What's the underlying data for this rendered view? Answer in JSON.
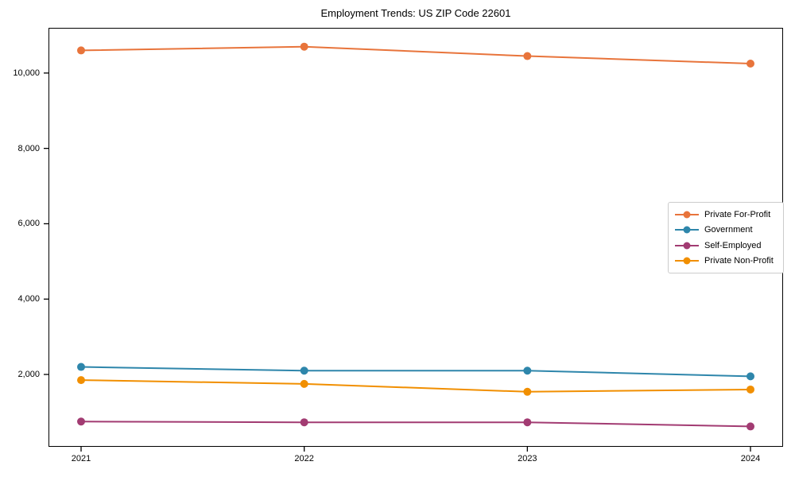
{
  "chart_data": {
    "type": "line",
    "title": "Employment Trends: US ZIP Code 22601",
    "categories": [
      "2021",
      "2022",
      "2023",
      "2024"
    ],
    "series": [
      {
        "name": "Private For-Profit",
        "color": "#E8743B",
        "values": [
          10600,
          10700,
          10450,
          10250
        ]
      },
      {
        "name": "Government",
        "color": "#2E86AB",
        "values": [
          2200,
          2100,
          2100,
          1950
        ]
      },
      {
        "name": "Self-Employed",
        "color": "#A23B72",
        "values": [
          750,
          730,
          730,
          620
        ]
      },
      {
        "name": "Private Non-Profit",
        "color": "#F18F01",
        "values": [
          1850,
          1750,
          1540,
          1600
        ]
      }
    ],
    "yticks": [
      {
        "value": 2000,
        "label": "2,000"
      },
      {
        "value": 4000,
        "label": "4,000"
      },
      {
        "value": 6000,
        "label": "6,000"
      },
      {
        "value": 8000,
        "label": "8,000"
      },
      {
        "value": 10000,
        "label": "10,000"
      }
    ],
    "ylim": [
      80,
      11200
    ],
    "xlabel": "",
    "ylabel": "",
    "grid": false,
    "legend_position": "center-right",
    "axis_color": "#000000"
  }
}
